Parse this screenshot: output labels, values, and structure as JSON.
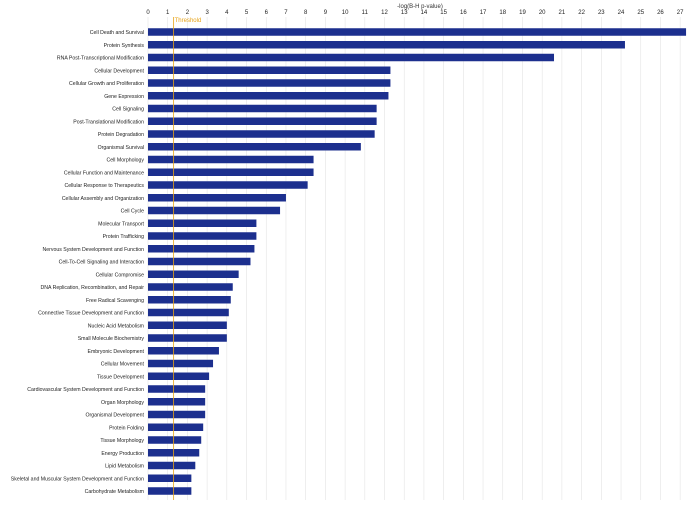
{
  "chart_data": {
    "type": "bar",
    "orientation": "horizontal",
    "xlabel": "-log(B-H p-value)",
    "xlim": [
      0,
      27.5
    ],
    "x_ticks": [
      0,
      1,
      2,
      3,
      4,
      5,
      6,
      7,
      8,
      9,
      10,
      11,
      12,
      13,
      14,
      15,
      16,
      17,
      18,
      19,
      20,
      21,
      22,
      23,
      24,
      25,
      26,
      27
    ],
    "axis_position": "top",
    "grid": true,
    "threshold": {
      "label": "Threshold",
      "value": 1.3
    },
    "bar_color": "#1c2f8e",
    "threshold_color": "#e8a317",
    "categories": [
      "Cell Death and Survival",
      "Protein Synthesis",
      "RNA Post-Transcriptional Modification",
      "Cellular Development",
      "Cellular Growth and Proliferation",
      "Gene Expression",
      "Cell Signaling",
      "Post-Translational Modification",
      "Protein Degradation",
      "Organismal Survival",
      "Cell Morphology",
      "Cellular Function and Maintenance",
      "Cellular Response to Therapeutics",
      "Cellular Assembly and Organization",
      "Cell Cycle",
      "Molecular Transport",
      "Protein Trafficking",
      "Nervous System Development and Function",
      "Cell-To-Cell Signaling and Interaction",
      "Cellular Compromise",
      "DNA Replication, Recombination, and Repair",
      "Free Radical Scavenging",
      "Connective Tissue Development and Function",
      "Nucleic Acid Metabolism",
      "Small Molecule Biochemistry",
      "Embryonic Development",
      "Cellular Movement",
      "Tissue Development",
      "Cardiovascular System Development and Function",
      "Organ Morphology",
      "Organismal Development",
      "Protein Folding",
      "Tissue Morphology",
      "Energy Production",
      "Lipid Metabolism",
      "Skeletal and Muscular System Development and Function",
      "Carbohydrate Metabolism"
    ],
    "values": [
      27.3,
      24.2,
      20.6,
      12.3,
      12.3,
      12.2,
      11.6,
      11.6,
      11.5,
      10.8,
      8.4,
      8.4,
      8.1,
      7.0,
      6.7,
      5.5,
      5.5,
      5.4,
      5.2,
      4.6,
      4.3,
      4.2,
      4.1,
      4.0,
      4.0,
      3.6,
      3.3,
      3.1,
      2.9,
      2.9,
      2.9,
      2.8,
      2.7,
      2.6,
      2.4,
      2.2,
      2.2
    ]
  }
}
